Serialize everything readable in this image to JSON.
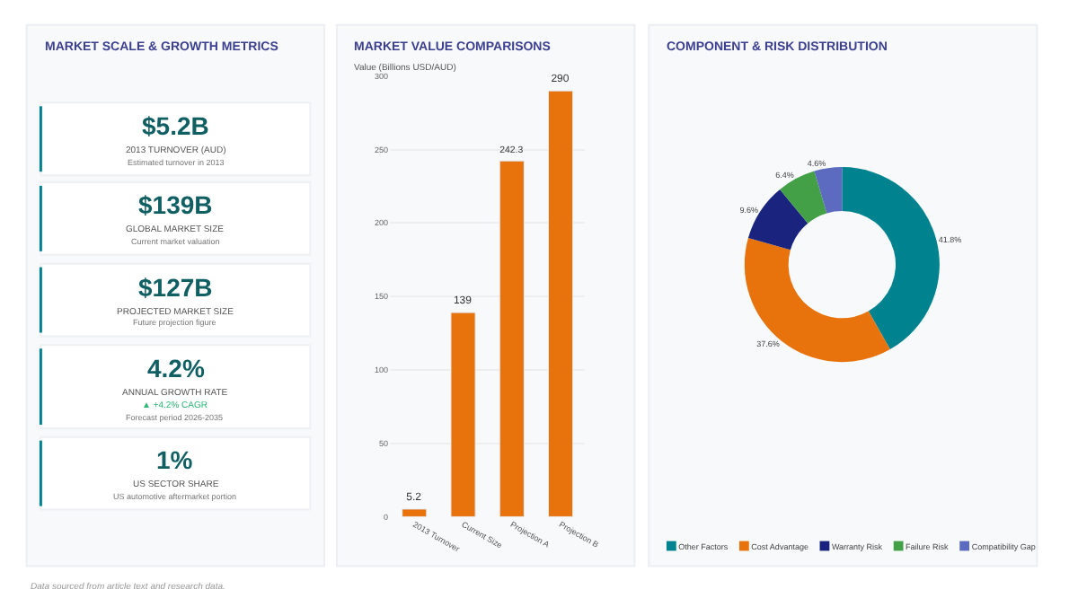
{
  "chart_data": [
    {
      "type": "other",
      "title": "MARKET SCALE & GROWTH METRICS",
      "categories": [
        "$5.2B",
        "$139B",
        "$127B",
        "4.2%",
        "1%"
      ],
      "annotations": [
        "2013 TURNOVER (AUD)\nEstimated turnover in 2013",
        "GLOBAL MARKET SIZE\nCurrent market valuation",
        "PROJECTED MARKET SIZE\nFuture projection figure",
        "ANNUAL GROWTH RATE\n▲ +4.2% CAGR\nForecast period 2026-2035",
        "US SECTOR SHARE\nUS automotive aftermarket portion",
        "Data sourced from article text and research data."
      ]
    },
    {
      "type": "bar",
      "title": "MARKET VALUE COMPARISONS",
      "ylabel": "Value (Billions USD/AUD)",
      "categories": [
        "2013 Turnover",
        "Current Size",
        "Projection A",
        "Projection B"
      ],
      "values": [
        5.2,
        139,
        242.3,
        290
      ],
      "color": "#e8720c",
      "ylim": [
        0,
        300
      ],
      "yticks": [
        0,
        50,
        100,
        150,
        200,
        250,
        300
      ],
      "grid": "y",
      "data_labels": true
    },
    {
      "type": "donut",
      "title": "COMPONENT & RISK DISTRIBUTION",
      "categories": [
        "Other Factors",
        "Cost Advantage",
        "Warranty Risk",
        "Failure Risk",
        "Compatibility Gap"
      ],
      "values": [
        41.8,
        37.6,
        9.6,
        6.4,
        4.6
      ],
      "colors": [
        "#00838f",
        "#e8720c",
        "#1a237e",
        "#43a047",
        "#5c6bc0"
      ],
      "value_labels": [
        "41.8%",
        "37.6%",
        "9.6%",
        "6.4%",
        "4.6%"
      ],
      "legend": "bottom"
    }
  ]
}
